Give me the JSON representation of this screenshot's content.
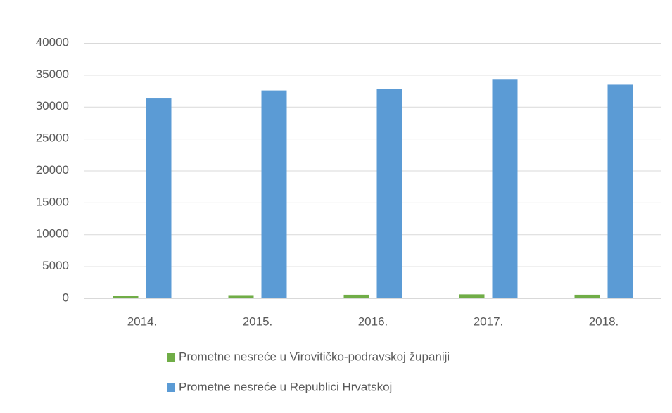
{
  "chart_data": {
    "type": "bar",
    "categories": [
      "2014.",
      "2015.",
      "2016.",
      "2017.",
      "2018."
    ],
    "series": [
      {
        "name": "Prometne nesreće u Virovitičko-podravskoj županiji",
        "color": "#70ad47",
        "values": [
          430,
          500,
          560,
          620,
          560
        ]
      },
      {
        "name": "Prometne nesreće u Republici Hrvatskoj",
        "color": "#5b9bd5",
        "values": [
          31400,
          32550,
          32750,
          34350,
          33450
        ]
      }
    ],
    "ylim": [
      0,
      40000
    ],
    "yticks": [
      0,
      5000,
      10000,
      15000,
      20000,
      25000,
      30000,
      35000,
      40000
    ],
    "grid": true,
    "legend": "bottom"
  }
}
